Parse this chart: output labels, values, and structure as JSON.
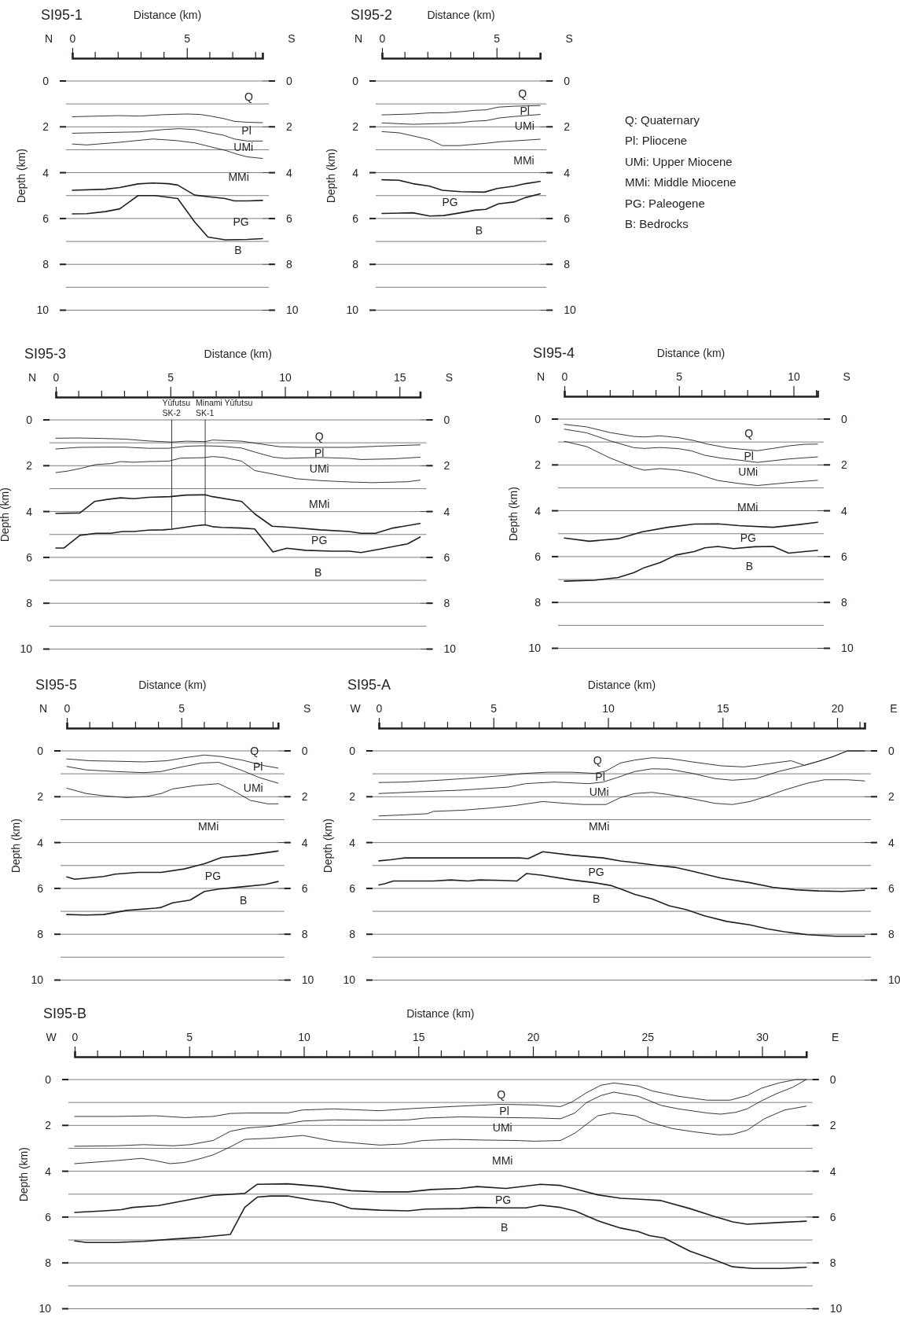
{
  "chart_data": [
    {
      "type": "line",
      "title": "SI95-1",
      "xlabel": "Distance (km)",
      "ylabel": "Depth (km)",
      "xlim": [
        0,
        8.3
      ],
      "xticks": [
        0,
        5
      ],
      "ylim": [
        10,
        0
      ],
      "yticks": [
        0,
        {
          "value": 1,
          "label": null
        },
        2,
        {
          "value": 3,
          "label": null
        },
        4,
        {
          "value": 5,
          "label": null
        },
        6,
        {
          "value": 7,
          "label": null
        },
        8,
        {
          "value": 9,
          "label": null
        },
        10
      ],
      "y2lim": [
        10,
        0
      ],
      "y2ticks": [
        0,
        {
          "value": 1,
          "label": null
        },
        2,
        {
          "value": 3,
          "label": null
        },
        4,
        {
          "value": 5,
          "label": null
        },
        6,
        {
          "value": 7,
          "label": null
        },
        8,
        {
          "value": 9,
          "label": null
        },
        10
      ],
      "grid": "y",
      "annotations": [
        "N",
        "S",
        "Q",
        "Pl",
        "UMi",
        "MMi",
        "PG",
        "B"
      ],
      "series": [
        {
          "color": "#231f20",
          "x": [
            0,
            2.01,
            2.93,
            3.97,
            5.0,
            5.57,
            6.03,
            6.61,
            7.07,
            7.64,
            8.3
          ],
          "values": [
            1.56,
            1.51,
            1.53,
            1.47,
            1.44,
            1.46,
            1.53,
            1.64,
            1.76,
            1.8,
            1.82
          ]
        },
        {
          "color": "#231f20",
          "x": [
            0,
            1.44,
            2.93,
            3.97,
            4.66,
            5.34,
            6.03,
            6.61,
            7.07,
            7.64,
            8.3
          ],
          "values": [
            2.28,
            2.25,
            2.22,
            2.12,
            2.08,
            2.12,
            2.26,
            2.37,
            2.53,
            2.62,
            2.62
          ]
        },
        {
          "color": "#231f20",
          "x": [
            0,
            0.63,
            2.01,
            3.51,
            4.54,
            5.34,
            6.03,
            6.72,
            7.18,
            7.64,
            8.3
          ],
          "values": [
            2.75,
            2.79,
            2.68,
            2.53,
            2.6,
            2.7,
            2.87,
            3.04,
            3.19,
            3.31,
            3.38
          ]
        },
        {
          "color": "#231f20",
          "x": [
            0,
            1.44,
            2.07,
            2.87,
            3.51,
            4.2,
            4.6,
            5.34,
            6.03,
            6.67,
            7.07,
            7.64,
            8.3
          ],
          "values": [
            4.77,
            4.72,
            4.65,
            4.49,
            4.45,
            4.48,
            4.54,
            4.98,
            5.06,
            5.13,
            5.23,
            5.23,
            5.21
          ]
        },
        {
          "color": "#231f20",
          "x": [
            0,
            0.63,
            1.44,
            2.07,
            2.87,
            3.62,
            4.6,
            5.34,
            5.92,
            6.67,
            7.64,
            8.3
          ],
          "values": [
            5.8,
            5.79,
            5.7,
            5.58,
            5.0,
            5.0,
            5.13,
            6.15,
            6.81,
            6.93,
            6.91,
            6.88
          ]
        }
      ]
    },
    {
      "type": "line",
      "title": "SI95-2",
      "xlabel": "Distance (km)",
      "ylabel": "Depth (km)",
      "xlim": [
        0,
        6.9
      ],
      "xticks": [
        0,
        5
      ],
      "ylim": [
        10,
        0
      ],
      "yticks": [
        0,
        {
          "value": 1,
          "label": null
        },
        2,
        {
          "value": 3,
          "label": null
        },
        4,
        {
          "value": 5,
          "label": null
        },
        6,
        {
          "value": 7,
          "label": null
        },
        8,
        {
          "value": 9,
          "label": null
        },
        10
      ],
      "y2lim": [
        10,
        0
      ],
      "y2ticks": [
        0,
        {
          "value": 1,
          "label": null
        },
        2,
        {
          "value": 3,
          "label": null
        },
        4,
        {
          "value": 5,
          "label": null
        },
        6,
        {
          "value": 7,
          "label": null
        },
        8,
        {
          "value": 9,
          "label": null
        },
        10
      ],
      "grid": "y",
      "annotations": [
        "N",
        "S",
        "Q",
        "Pl",
        "UMi",
        "MMi",
        "PG",
        "B"
      ],
      "series": [
        {
          "color": "#231f20",
          "x": [
            0,
            1.35,
            2.08,
            2.7,
            3.55,
            4.04,
            4.53,
            5.08,
            5.76,
            6.9
          ],
          "values": [
            1.48,
            1.44,
            1.39,
            1.39,
            1.33,
            1.28,
            1.26,
            1.14,
            1.1,
            1.07
          ]
        },
        {
          "color": "#231f20",
          "x": [
            0,
            1.35,
            2.82,
            3.43,
            3.92,
            4.53,
            5.15,
            5.76,
            6.9
          ],
          "values": [
            1.83,
            1.89,
            1.85,
            1.82,
            1.76,
            1.73,
            1.61,
            1.55,
            1.46
          ]
        },
        {
          "color": "#231f20",
          "x": [
            0,
            0.74,
            2.08,
            2.63,
            3.37,
            4.53,
            5.15,
            6.0,
            6.9
          ],
          "values": [
            2.21,
            2.26,
            2.56,
            2.82,
            2.82,
            2.72,
            2.65,
            2.6,
            2.54
          ]
        },
        {
          "color": "#231f20",
          "x": [
            0,
            0.74,
            1.35,
            2.08,
            2.63,
            3.43,
            4.47,
            5.02,
            5.76,
            6.25,
            6.9
          ],
          "values": [
            4.31,
            4.33,
            4.48,
            4.59,
            4.77,
            4.83,
            4.85,
            4.69,
            4.59,
            4.48,
            4.38
          ]
        },
        {
          "color": "#231f20",
          "x": [
            0,
            1.35,
            2.08,
            2.7,
            3.43,
            4.04,
            4.53,
            5.08,
            5.76,
            6.25,
            6.9
          ],
          "values": [
            5.78,
            5.75,
            5.89,
            5.87,
            5.75,
            5.64,
            5.6,
            5.36,
            5.28,
            5.09,
            4.92
          ]
        }
      ]
    },
    {
      "type": "line",
      "title": "SI95-3",
      "xlabel": "Distance (km)",
      "ylabel": "Depth (km)",
      "xlim": [
        0,
        15.9
      ],
      "xticks": [
        0,
        5,
        10,
        15
      ],
      "ylim": [
        10,
        0
      ],
      "yticks": [
        0,
        {
          "value": 1,
          "label": null
        },
        2,
        {
          "value": 3,
          "label": null
        },
        4,
        {
          "value": 5,
          "label": null
        },
        6,
        {
          "value": 7,
          "label": null
        },
        8,
        {
          "value": 9,
          "label": null
        },
        10
      ],
      "y2lim": [
        10,
        0
      ],
      "y2ticks": [
        0,
        {
          "value": 1,
          "label": null
        },
        2,
        {
          "value": 3,
          "label": null
        },
        4,
        {
          "value": 5,
          "label": null
        },
        6,
        {
          "value": 7,
          "label": null
        },
        8,
        {
          "value": 9,
          "label": null
        },
        10
      ],
      "grid": "y",
      "annotations": [
        "N",
        "S",
        {
          "text": "Yūfutsu\nSK-2",
          "x": 5.06,
          "y": 0
        },
        {
          "text": "Minami Yūfutsu\nSK-1",
          "x": 6.52,
          "y": 0
        },
        "Q",
        "Pl",
        "UMi",
        "MMi",
        "PG",
        "B"
      ],
      "series": [
        {
          "color": "#231f20",
          "x": [
            0,
            0.99,
            2.0,
            3.02,
            4.04,
            5.06,
            5.69,
            6.52,
            6.84,
            8.11,
            9.0,
            9.76,
            10.77,
            12.81,
            14.08,
            15.9
          ],
          "values": [
            0.8,
            0.79,
            0.81,
            0.84,
            0.92,
            0.97,
            0.93,
            0.95,
            0.88,
            0.93,
            1.06,
            1.17,
            1.2,
            1.2,
            1.15,
            1.09
          ]
        },
        {
          "color": "#231f20",
          "x": [
            0,
            0.99,
            2.0,
            3.02,
            4.04,
            4.93,
            5.69,
            6.45,
            7.22,
            8.11,
            8.74,
            9.5,
            10.01,
            11.54,
            12.81,
            13.32,
            14.71,
            15.9
          ],
          "values": [
            1.27,
            1.2,
            1.19,
            1.19,
            1.24,
            1.24,
            1.15,
            1.13,
            1.15,
            1.23,
            1.42,
            1.63,
            1.68,
            1.64,
            1.68,
            1.73,
            1.7,
            1.63
          ]
        },
        {
          "color": "#231f20",
          "x": [
            0,
            0.48,
            1.12,
            1.75,
            2.39,
            2.83,
            3.41,
            4.04,
            4.93,
            5.44,
            6.45,
            6.84,
            7.34,
            8.11,
            8.68,
            9.5,
            10.52,
            11.54,
            12.81,
            13.82,
            15.34,
            15.9
          ],
          "values": [
            2.3,
            2.24,
            2.11,
            1.95,
            1.91,
            1.82,
            1.85,
            1.82,
            1.8,
            1.67,
            1.65,
            1.6,
            1.64,
            1.8,
            2.21,
            2.37,
            2.57,
            2.65,
            2.71,
            2.74,
            2.7,
            2.63
          ]
        },
        {
          "color": "#231f20",
          "x": [
            0,
            1.05,
            1.69,
            2.26,
            2.83,
            3.41,
            4.04,
            4.99,
            5.69,
            6.52,
            6.84,
            8.11,
            8.68,
            9.44,
            10.27,
            11.54,
            12.81,
            13.32,
            13.95,
            14.71,
            15.9
          ],
          "values": [
            4.08,
            4.06,
            3.56,
            3.47,
            3.4,
            3.44,
            3.38,
            3.35,
            3.28,
            3.27,
            3.35,
            3.56,
            4.1,
            4.64,
            4.69,
            4.8,
            4.87,
            4.95,
            4.95,
            4.72,
            4.52
          ]
        },
        {
          "color": "#231f20",
          "x": [
            0,
            0.36,
            1.05,
            1.75,
            2.39,
            2.9,
            3.41,
            4.04,
            4.68,
            5.06,
            6.07,
            6.52,
            6.84,
            7.22,
            8.11,
            8.68,
            9.48,
            10.08,
            10.9,
            12.05,
            12.81,
            13.32,
            14.08,
            15.35,
            15.9
          ],
          "values": [
            5.59,
            5.59,
            5.04,
            4.95,
            4.95,
            4.87,
            4.87,
            4.81,
            4.8,
            4.77,
            4.62,
            4.58,
            4.66,
            4.69,
            4.72,
            4.76,
            5.76,
            5.6,
            5.69,
            5.73,
            5.73,
            5.79,
            5.65,
            5.41,
            5.11
          ]
        },
        {
          "color": "#231f20",
          "x": [
            5.06,
            5.06
          ],
          "values": [
            0,
            4.77
          ]
        },
        {
          "color": "#231f20",
          "x": [
            6.52,
            6.52
          ],
          "values": [
            0,
            4.58
          ]
        }
      ]
    },
    {
      "type": "line",
      "title": "SI95-4",
      "xlabel": "Distance (km)",
      "ylabel": "Depth (km)",
      "xlim": [
        0,
        11.05
      ],
      "xticks": [
        0,
        5,
        10
      ],
      "ylim": [
        10,
        0
      ],
      "yticks": [
        0,
        {
          "value": 1,
          "label": null
        },
        2,
        {
          "value": 3,
          "label": null
        },
        4,
        {
          "value": 5,
          "label": null
        },
        6,
        {
          "value": 7,
          "label": null
        },
        8,
        {
          "value": 9,
          "label": null
        },
        10
      ],
      "y2lim": [
        10,
        0
      ],
      "y2ticks": [
        0,
        {
          "value": 1,
          "label": null
        },
        2,
        {
          "value": 3,
          "label": null
        },
        4,
        {
          "value": 5,
          "label": null
        },
        6,
        {
          "value": 7,
          "label": null
        },
        8,
        {
          "value": 9,
          "label": null
        },
        10
      ],
      "grid": "y",
      "annotations": [
        "N",
        "S",
        "Q",
        "Pl",
        "UMi",
        "MMi",
        "PG",
        "B"
      ],
      "series": [
        {
          "color": "#231f20",
          "x": [
            0,
            0.97,
            2.0,
            3.04,
            3.49,
            4.18,
            4.98,
            5.67,
            6.24,
            7.16,
            8.42,
            9.11,
            9.79,
            10.48,
            11.05
          ],
          "values": [
            0.23,
            0.34,
            0.59,
            0.76,
            0.78,
            0.73,
            0.81,
            0.94,
            1.09,
            1.26,
            1.38,
            1.28,
            1.17,
            1.1,
            1.09
          ]
        },
        {
          "color": "#231f20",
          "x": [
            0,
            0.97,
            2.0,
            3.04,
            3.49,
            4.18,
            4.98,
            5.56,
            6.13,
            6.82,
            7.62,
            8.42,
            9.79,
            11.05
          ],
          "values": [
            0.44,
            0.6,
            0.95,
            1.25,
            1.28,
            1.24,
            1.29,
            1.39,
            1.58,
            1.7,
            1.79,
            1.89,
            1.74,
            1.65
          ]
        },
        {
          "color": "#231f20",
          "x": [
            0,
            0.97,
            2.0,
            3.04,
            3.49,
            4.18,
            4.98,
            5.67,
            6.7,
            7.62,
            8.42,
            9.79,
            11.05
          ],
          "values": [
            0.97,
            1.2,
            1.7,
            2.11,
            2.23,
            2.16,
            2.23,
            2.36,
            2.68,
            2.81,
            2.9,
            2.77,
            2.67
          ]
        },
        {
          "color": "#231f20",
          "x": [
            0,
            1.09,
            2.35,
            3.38,
            4.52,
            5.67,
            6.7,
            7.62,
            9.11,
            10.25,
            11.05
          ],
          "values": [
            5.19,
            5.33,
            5.22,
            4.92,
            4.72,
            4.58,
            4.57,
            4.65,
            4.72,
            4.6,
            4.5
          ]
        },
        {
          "color": "#231f20",
          "x": [
            0,
            1.32,
            2.35,
            3.04,
            3.49,
            4.18,
            4.87,
            5.67,
            6.13,
            6.7,
            7.39,
            8.3,
            9.11,
            9.79,
            10.48,
            11.05
          ],
          "values": [
            7.07,
            7.03,
            6.91,
            6.7,
            6.48,
            6.26,
            5.93,
            5.78,
            5.62,
            5.56,
            5.65,
            5.57,
            5.56,
            5.85,
            5.78,
            5.73
          ]
        }
      ]
    },
    {
      "type": "line",
      "title": "SI95-5",
      "xlabel": "Distance (km)",
      "ylabel": "Depth (km)",
      "xlim": [
        0,
        9.22
      ],
      "xticks": [
        0,
        5
      ],
      "ylim": [
        10,
        0
      ],
      "yticks": [
        0,
        {
          "value": 1,
          "label": null
        },
        2,
        {
          "value": 3,
          "label": null
        },
        4,
        {
          "value": 5,
          "label": null
        },
        6,
        {
          "value": 7,
          "label": null
        },
        8,
        {
          "value": 9,
          "label": null
        },
        10
      ],
      "y2lim": [
        10,
        0
      ],
      "y2ticks": [
        0,
        {
          "value": 1,
          "label": null
        },
        2,
        {
          "value": 3,
          "label": null
        },
        4,
        {
          "value": 5,
          "label": null
        },
        6,
        {
          "value": 7,
          "label": null
        },
        8,
        {
          "value": 9,
          "label": null
        },
        10
      ],
      "grid": "y",
      "annotations": [
        "N",
        "S",
        "Q",
        "Pl",
        "UMi",
        "MMi",
        "PG",
        "B"
      ],
      "series": [
        {
          "color": "#231f20",
          "x": [
            0,
            0.98,
            2.11,
            3.37,
            4.37,
            5.13,
            6.01,
            6.76,
            7.64,
            8.64,
            9.22
          ],
          "values": [
            0.35,
            0.43,
            0.45,
            0.48,
            0.43,
            0.3,
            0.18,
            0.25,
            0.4,
            0.65,
            0.75
          ]
        },
        {
          "color": "#231f20",
          "x": [
            0,
            0.85,
            2.11,
            3.37,
            4.12,
            4.87,
            5.88,
            6.63,
            7.64,
            8.39,
            9.22
          ],
          "values": [
            0.68,
            0.83,
            0.9,
            0.95,
            0.9,
            0.73,
            0.53,
            0.5,
            0.85,
            1.16,
            1.41
          ]
        },
        {
          "color": "#231f20",
          "x": [
            0,
            0.85,
            1.61,
            2.61,
            3.49,
            4.12,
            4.62,
            5.63,
            6.63,
            7.26,
            8.01,
            8.77,
            9.22
          ],
          "values": [
            1.63,
            1.86,
            1.96,
            2.04,
            1.99,
            1.86,
            1.66,
            1.51,
            1.43,
            1.73,
            2.16,
            2.31,
            2.31
          ]
        },
        {
          "color": "#231f20",
          "x": [
            0,
            0.35,
            1.61,
            2.11,
            3.12,
            4.12,
            5.13,
            6.01,
            6.76,
            7.89,
            9.22
          ],
          "values": [
            5.5,
            5.6,
            5.48,
            5.38,
            5.3,
            5.3,
            5.15,
            4.92,
            4.65,
            4.55,
            4.37
          ]
        },
        {
          "color": "#231f20",
          "x": [
            0,
            0.85,
            1.61,
            2.61,
            3.87,
            4.12,
            4.62,
            5.38,
            6.01,
            6.63,
            7.64,
            8.64,
            9.22
          ],
          "values": [
            7.14,
            7.16,
            7.14,
            6.96,
            6.86,
            6.83,
            6.63,
            6.51,
            6.13,
            6.03,
            5.93,
            5.83,
            5.7
          ]
        }
      ]
    },
    {
      "type": "line",
      "title": "SI95-A",
      "xlabel": "Distance (km)",
      "ylabel": "Depth (km)",
      "xlim": [
        0,
        21.2
      ],
      "xticks": [
        0,
        5,
        10,
        15,
        20
      ],
      "ylim": [
        10,
        0
      ],
      "yticks": [
        0,
        {
          "value": 1,
          "label": null
        },
        2,
        {
          "value": 3,
          "label": null
        },
        4,
        {
          "value": 5,
          "label": null
        },
        6,
        {
          "value": 7,
          "label": null
        },
        8,
        {
          "value": 9,
          "label": null
        },
        10
      ],
      "y2lim": [
        10,
        0
      ],
      "y2ticks": [
        0,
        {
          "value": 1,
          "label": null
        },
        2,
        {
          "value": 3,
          "label": null
        },
        4,
        {
          "value": 5,
          "label": null
        },
        6,
        {
          "value": 7,
          "label": null
        },
        8,
        {
          "value": 9,
          "label": null
        },
        10
      ],
      "grid": "y",
      "annotations": [
        "W",
        "E",
        "Q",
        "Pl",
        "UMi",
        "MMi",
        "PG",
        "B"
      ],
      "series": [
        {
          "color": "#231f20",
          "x": [
            0,
            1.13,
            2.63,
            4.14,
            5.4,
            6.4,
            7.4,
            8.41,
            9.41,
            9.91,
            10.54,
            11.17,
            11.92,
            12.67,
            13.68,
            14.93,
            15.93,
            16.69,
            17.99,
            18.57,
            19.2,
            19.82,
            20.45,
            21.2
          ],
          "values": [
            1.38,
            1.36,
            1.28,
            1.18,
            1.08,
            0.98,
            0.93,
            0.93,
            0.98,
            0.88,
            0.53,
            0.4,
            0.3,
            0.33,
            0.48,
            0.65,
            0.7,
            0.6,
            0.43,
            0.63,
            0.45,
            0.25,
            0,
            0
          ]
        },
        {
          "color": "#231f20",
          "x": [
            0,
            1.88,
            3.64,
            5.65,
            6.4,
            7.65,
            9.16,
            9.79,
            10.41,
            11.17,
            11.92,
            12.67,
            13.68,
            14.68,
            15.43,
            16.44,
            17.44,
            18.57,
            19.2,
            19.82,
            20.45,
            21.2
          ],
          "values": [
            1.86,
            1.78,
            1.71,
            1.58,
            1.43,
            1.36,
            1.43,
            1.36,
            1.16,
            0.9,
            0.78,
            0.8,
            0.98,
            1.21,
            1.28,
            1.21,
            0.9,
            0.63,
            0.45,
            0.25,
            0,
            0
          ]
        },
        {
          "color": "#231f20",
          "x": [
            0,
            1.13,
            2.13,
            2.38,
            3.64,
            4.89,
            5.9,
            7.15,
            8.16,
            8.91,
            9.91,
            10.54,
            11.17,
            11.92,
            12.67,
            13.68,
            14.68,
            15.43,
            16.19,
            16.94,
            17.69,
            18.7,
            19.45,
            20.45,
            21.2
          ],
          "values": [
            2.84,
            2.79,
            2.74,
            2.64,
            2.59,
            2.49,
            2.39,
            2.21,
            2.29,
            2.34,
            2.34,
            2.04,
            1.86,
            1.81,
            1.91,
            2.09,
            2.29,
            2.34,
            2.21,
            1.98,
            1.71,
            1.41,
            1.26,
            1.26,
            1.31
          ]
        },
        {
          "color": "#231f20",
          "x": [
            0,
            0.5,
            1.13,
            3.64,
            6.15,
            6.52,
            7.15,
            8.41,
            9.79,
            10.54,
            11.17,
            12.17,
            12.92,
            13.68,
            14.93,
            16.19,
            17.19,
            18.19,
            19.2,
            20.2,
            21.2
          ],
          "values": [
            4.8,
            4.75,
            4.67,
            4.67,
            4.67,
            4.7,
            4.4,
            4.55,
            4.67,
            4.8,
            4.87,
            5.0,
            5.08,
            5.25,
            5.55,
            5.75,
            5.95,
            6.06,
            6.11,
            6.13,
            6.08
          ]
        },
        {
          "color": "#231f20",
          "x": [
            0,
            0.25,
            0.63,
            2.38,
            3.14,
            3.89,
            4.39,
            5.4,
            6.02,
            6.45,
            7.15,
            8.41,
            9.41,
            10.16,
            10.66,
            11.17,
            11.92,
            12.67,
            13.43,
            14.18,
            15.18,
            16.19,
            16.94,
            17.69,
            18.7,
            19.95,
            21.2
          ],
          "values": [
            5.85,
            5.8,
            5.68,
            5.68,
            5.63,
            5.68,
            5.63,
            5.65,
            5.68,
            5.35,
            5.43,
            5.63,
            5.75,
            5.88,
            6.06,
            6.26,
            6.46,
            6.76,
            6.93,
            7.19,
            7.44,
            7.59,
            7.76,
            7.89,
            8.02,
            8.09,
            8.09
          ]
        }
      ]
    },
    {
      "type": "line",
      "title": "SI95-B",
      "xlabel": "Distance (km)",
      "ylabel": "Depth (km)",
      "xlim": [
        0,
        31.93
      ],
      "xticks": [
        0,
        5,
        10,
        15,
        20,
        25,
        30
      ],
      "ylim": [
        10,
        0
      ],
      "yticks": [
        0,
        {
          "value": 1,
          "label": null
        },
        2,
        {
          "value": 3,
          "label": null
        },
        4,
        {
          "value": 5,
          "label": null
        },
        6,
        {
          "value": 7,
          "label": null
        },
        8,
        {
          "value": 9,
          "label": null
        },
        10
      ],
      "y2lim": [
        10,
        0
      ],
      "y2ticks": [
        0,
        {
          "value": 1,
          "label": null
        },
        2,
        {
          "value": 3,
          "label": null
        },
        4,
        {
          "value": 5,
          "label": null
        },
        6,
        {
          "value": 7,
          "label": null
        },
        8,
        {
          "value": 9,
          "label": null
        },
        10
      ],
      "grid": "y",
      "annotations": [
        "W",
        "E",
        "Q",
        "Pl",
        "UMi",
        "MMi",
        "PG",
        "B"
      ],
      "series": [
        {
          "color": "#231f20",
          "x": [
            0,
            1.78,
            3.53,
            4.79,
            6.04,
            6.79,
            7.54,
            9.3,
            9.92,
            11.3,
            13.31,
            14.81,
            16.82,
            18.57,
            20.08,
            21.2,
            21.7,
            22.33,
            22.96,
            23.53,
            24.6,
            25.22,
            26.35,
            27.6,
            28.6,
            29.35,
            29.97,
            30.73,
            31.48,
            31.93
          ],
          "values": [
            1.61,
            1.61,
            1.58,
            1.66,
            1.61,
            1.48,
            1.46,
            1.46,
            1.33,
            1.28,
            1.36,
            1.26,
            1.16,
            1.08,
            1.11,
            1.18,
            0.98,
            0.58,
            0.25,
            0.15,
            0.28,
            0.5,
            0.73,
            0.9,
            0.9,
            0.7,
            0.38,
            0.15,
            0,
            0
          ]
        },
        {
          "color": "#231f20",
          "x": [
            0,
            1.78,
            3.03,
            4.29,
            5.04,
            6.04,
            6.79,
            7.54,
            8.55,
            9.55,
            9.97,
            11.3,
            13.31,
            14.56,
            15.31,
            16.82,
            18.82,
            20.33,
            21.2,
            21.83,
            22.33,
            22.96,
            23.53,
            24.6,
            25.6,
            26.35,
            27.6,
            28.2,
            28.85,
            29.35,
            29.97,
            30.6,
            31.35,
            31.93
          ],
          "values": [
            2.91,
            2.89,
            2.84,
            2.89,
            2.84,
            2.66,
            2.26,
            2.11,
            2.04,
            1.88,
            1.81,
            1.76,
            1.78,
            1.76,
            1.68,
            1.63,
            1.66,
            1.68,
            1.71,
            1.46,
            1.01,
            0.7,
            0.55,
            0.73,
            1.13,
            1.28,
            1.46,
            1.51,
            1.43,
            1.28,
            0.93,
            0.63,
            0.33,
            0
          ]
        },
        {
          "color": "#231f20",
          "x": [
            0,
            1.78,
            2.91,
            3.53,
            4.16,
            4.79,
            5.41,
            6.04,
            6.79,
            7.42,
            8.55,
            9.97,
            11.3,
            13.31,
            14.31,
            15.19,
            16.57,
            17.82,
            19.32,
            20.08,
            21.2,
            21.83,
            22.83,
            23.46,
            24.46,
            25.09,
            26.09,
            27.1,
            28.1,
            28.72,
            29.35,
            30.1,
            30.98,
            31.93
          ],
          "values": [
            3.67,
            3.54,
            3.44,
            3.54,
            3.67,
            3.62,
            3.47,
            3.29,
            2.94,
            2.61,
            2.56,
            2.44,
            2.69,
            2.86,
            2.81,
            2.66,
            2.61,
            2.64,
            2.66,
            2.69,
            2.66,
            2.34,
            1.58,
            1.46,
            1.58,
            1.86,
            2.14,
            2.29,
            2.41,
            2.39,
            2.21,
            1.71,
            1.33,
            1.16
          ]
        },
        {
          "color": "#231f20",
          "x": [
            0,
            1.28,
            2.03,
            2.53,
            3.66,
            4.79,
            6.04,
            7.42,
            7.97,
            9.3,
            10.8,
            12.06,
            13.31,
            14.56,
            15.56,
            16.82,
            17.57,
            18.82,
            20.33,
            21.2,
            21.83,
            22.83,
            23.83,
            24.84,
            25.59,
            26.85,
            27.85,
            28.72,
            29.35,
            30.86,
            31.93
          ],
          "values": [
            5.8,
            5.73,
            5.68,
            5.58,
            5.5,
            5.28,
            5.05,
            4.97,
            4.57,
            4.55,
            4.67,
            4.85,
            4.9,
            4.9,
            4.8,
            4.75,
            4.67,
            4.75,
            4.57,
            4.62,
            4.77,
            5.03,
            5.18,
            5.23,
            5.28,
            5.63,
            5.95,
            6.21,
            6.31,
            6.23,
            6.18
          ]
        },
        {
          "color": "#231f20",
          "x": [
            0,
            0.53,
            1.78,
            3.03,
            4.29,
            5.54,
            6.79,
            7.42,
            7.97,
            8.55,
            9.3,
            10.3,
            11.3,
            12.06,
            13.31,
            14.56,
            15.31,
            16.82,
            17.57,
            18.82,
            19.7,
            20.33,
            21.2,
            21.83,
            22.83,
            23.83,
            24.59,
            25.09,
            25.72,
            26.85,
            27.85,
            28.72,
            29.6,
            30.86,
            31.93
          ],
          "values": [
            7.04,
            7.11,
            7.11,
            7.06,
            6.96,
            6.88,
            6.76,
            5.58,
            5.13,
            5.08,
            5.08,
            5.25,
            5.38,
            5.63,
            5.7,
            5.73,
            5.65,
            5.63,
            5.58,
            5.6,
            5.6,
            5.48,
            5.58,
            5.73,
            6.16,
            6.48,
            6.63,
            6.81,
            6.91,
            7.49,
            7.84,
            8.17,
            8.24,
            8.24,
            8.19
          ]
        }
      ]
    },
    {
      "type": "other",
      "annotations": [
        "Q: Quaternary",
        "Pl: Pliocene",
        "UMi: Upper Miocene",
        "MMi: Middle Miocene",
        "PG: Paleogene",
        "B: Bedrocks"
      ]
    }
  ]
}
